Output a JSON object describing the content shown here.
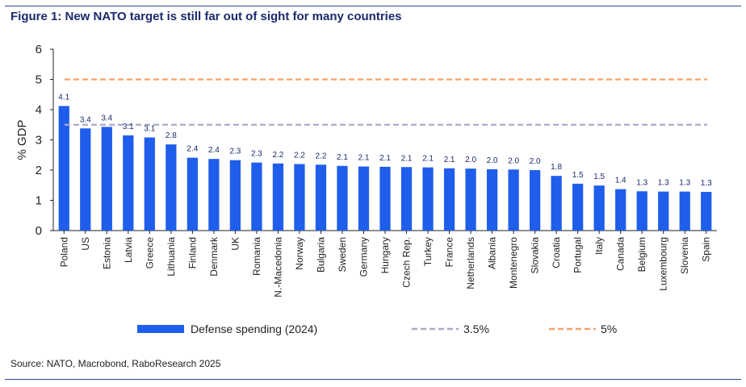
{
  "figure_title": "Figure 1: New NATO target is still far out of sight for many countries",
  "source": "Source: NATO, Macrobond, RaboResearch 2025",
  "chart_data": {
    "type": "bar",
    "title": "",
    "xlabel": "",
    "ylabel": "% GDP",
    "ylim": [
      0,
      6
    ],
    "yticks": [
      0,
      1,
      2,
      3,
      4,
      5,
      6
    ],
    "grid": false,
    "legend_position": "bottom",
    "categories": [
      "Poland",
      "US",
      "Estonia",
      "Latvia",
      "Greece",
      "Lithuania",
      "Finland",
      "Denmark",
      "UK",
      "Romania",
      "N.-Macedonia",
      "Norway",
      "Bulgaria",
      "Sweden",
      "Germany",
      "Hungary",
      "Czech Rep.",
      "Turkey",
      "France",
      "Netherlands",
      "Albania",
      "Montenegro",
      "Slovakia",
      "Croatia",
      "Portugal",
      "Italy",
      "Canada",
      "Belgium",
      "Luxembourg",
      "Slovenia",
      "Spain"
    ],
    "series": [
      {
        "name": "Defense spending (2024)",
        "color": "#1f5eea",
        "values": [
          4.12,
          3.38,
          3.43,
          3.15,
          3.08,
          2.85,
          2.41,
          2.37,
          2.33,
          2.25,
          2.22,
          2.2,
          2.18,
          2.14,
          2.12,
          2.11,
          2.1,
          2.09,
          2.06,
          2.05,
          2.03,
          2.02,
          2.0,
          1.81,
          1.55,
          1.49,
          1.37,
          1.3,
          1.29,
          1.29,
          1.28
        ],
        "labels": [
          "4.1",
          "3.4",
          "3.4",
          "3.1",
          "3.1",
          "2.8",
          "2.4",
          "2.4",
          "2.3",
          "2.3",
          "2.2",
          "2.2",
          "2.2",
          "2.1",
          "2.1",
          "2.1",
          "2.1",
          "2.1",
          "2.1",
          "2.0",
          "2.0",
          "2.0",
          "2.0",
          "1.8",
          "1.5",
          "1.5",
          "1.4",
          "1.3",
          "1.3",
          "1.3",
          "1.3"
        ]
      }
    ],
    "reference_lines": [
      {
        "name": "3.5%",
        "value": 3.5,
        "color": "#a9a9cf"
      },
      {
        "name": "5%",
        "value": 5,
        "color": "#f7a26b"
      }
    ],
    "label_color": "#1a2a6c"
  }
}
